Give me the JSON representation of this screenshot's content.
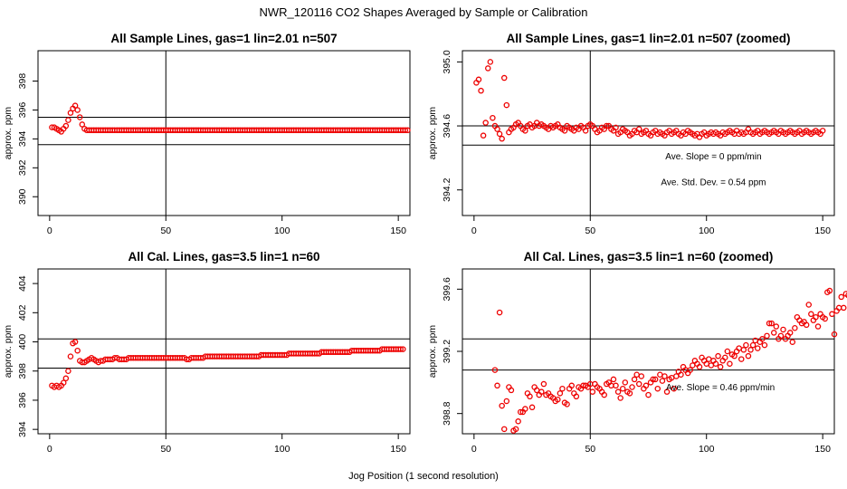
{
  "figure": {
    "title": "NWR_120116  CO2 Shapes Averaged by Sample or Calibration",
    "xlabel": "Jog Position (1 second resolution)",
    "marker_color": "#ee0000",
    "axis_color": "#000000"
  },
  "chart_data": [
    {
      "type": "scatter",
      "title": "All Sample Lines, gas=1 lin=2.01 n=507",
      "xlabel": "",
      "ylabel": "approx. ppm",
      "xlim": [
        -5,
        155
      ],
      "ylim": [
        388.7,
        400.1
      ],
      "xticks": [
        0,
        50,
        100,
        150
      ],
      "yticks": [
        390,
        392,
        394,
        396,
        398
      ],
      "xtick_labels": [
        "0",
        "50",
        "100",
        "150"
      ],
      "ytick_labels": [
        "390",
        "392",
        "394",
        "396",
        "398"
      ],
      "vline": 50,
      "hlines": [
        395.5,
        393.6
      ],
      "annotations": [],
      "series": [
        {
          "name": "sample",
          "x_start": 1,
          "x_step": 1,
          "values": [
            394.8,
            394.8,
            394.7,
            394.6,
            394.5,
            394.7,
            394.9,
            395.3,
            395.8,
            396.1,
            396.3,
            396.0,
            395.5,
            395.0,
            394.7,
            394.6,
            394.6,
            394.6,
            394.6,
            394.6,
            394.6,
            394.6,
            394.6,
            394.6,
            394.6,
            394.6,
            394.6,
            394.6,
            394.6,
            394.6,
            394.6,
            394.6,
            394.6,
            394.6,
            394.6,
            394.6,
            394.6,
            394.6,
            394.6,
            394.6,
            394.6,
            394.6,
            394.6,
            394.6,
            394.6,
            394.6,
            394.6,
            394.6,
            394.6,
            394.6,
            394.6,
            394.6,
            394.6,
            394.6,
            394.6,
            394.6,
            394.6,
            394.6,
            394.6,
            394.6,
            394.6,
            394.6,
            394.6,
            394.6,
            394.6,
            394.6,
            394.6,
            394.6,
            394.6,
            394.6,
            394.6,
            394.6,
            394.6,
            394.6,
            394.6,
            394.6,
            394.6,
            394.6,
            394.6,
            394.6,
            394.6,
            394.6,
            394.6,
            394.6,
            394.6,
            394.6,
            394.6,
            394.6,
            394.6,
            394.6,
            394.6,
            394.6,
            394.6,
            394.6,
            394.6,
            394.6,
            394.6,
            394.6,
            394.6,
            394.6,
            394.6,
            394.6,
            394.6,
            394.6,
            394.6,
            394.6,
            394.6,
            394.6,
            394.6,
            394.6,
            394.6,
            394.6,
            394.6,
            394.6,
            394.6,
            394.6,
            394.6,
            394.6,
            394.6,
            394.6,
            394.6,
            394.6,
            394.6,
            394.6,
            394.6,
            394.6,
            394.6,
            394.6,
            394.6,
            394.6,
            394.6,
            394.6,
            394.6,
            394.6,
            394.6,
            394.6,
            394.6,
            394.6,
            394.6,
            394.6,
            394.6,
            394.6,
            394.6,
            394.6,
            394.6,
            394.6,
            394.6,
            394.6,
            394.6,
            394.6,
            394.6,
            394.6,
            394.6,
            394.6
          ]
        }
      ]
    },
    {
      "type": "scatter",
      "title": "All Sample Lines, gas=1 lin=2.01 n=507 (zoomed)",
      "xlabel": "",
      "ylabel": "approx. ppm",
      "xlim": [
        -5,
        155
      ],
      "ylim": [
        394.04,
        395.07
      ],
      "xticks": [
        0,
        50,
        100,
        150
      ],
      "yticks": [
        394.2,
        394.6,
        395.0
      ],
      "xtick_labels": [
        "0",
        "50",
        "100",
        "150"
      ],
      "ytick_labels": [
        "394.2",
        "394.6",
        "395.0"
      ],
      "vline": 50,
      "hlines": [
        394.6,
        394.48
      ],
      "annotations": [
        {
          "text": "Ave. Slope =  0  ppm/min",
          "x": 103,
          "y": 394.39
        },
        {
          "text": "Ave. Std. Dev. =  0.54  ppm",
          "x": 103,
          "y": 394.23
        }
      ],
      "series": [
        {
          "name": "sample-zoomed",
          "x_start": 1,
          "x_step": 1,
          "values": [
            394.87,
            394.89,
            394.82,
            394.54,
            394.62,
            394.96,
            395.0,
            394.65,
            394.6,
            394.58,
            394.55,
            394.52,
            394.9,
            394.73,
            394.56,
            394.58,
            394.59,
            394.61,
            394.62,
            394.6,
            394.58,
            394.57,
            394.6,
            394.61,
            394.59,
            394.6,
            394.62,
            394.6,
            394.61,
            394.6,
            394.59,
            394.58,
            394.6,
            394.59,
            394.6,
            394.61,
            394.59,
            394.58,
            394.57,
            394.6,
            394.59,
            394.58,
            394.57,
            394.59,
            394.58,
            394.6,
            394.59,
            394.57,
            394.6,
            394.61,
            394.6,
            394.58,
            394.56,
            394.57,
            394.59,
            394.58,
            394.6,
            394.6,
            394.58,
            394.57,
            394.59,
            394.55,
            394.56,
            394.58,
            394.57,
            394.56,
            394.54,
            394.55,
            394.57,
            394.56,
            394.58,
            394.55,
            394.56,
            394.57,
            394.55,
            394.54,
            394.56,
            394.57,
            394.55,
            394.56,
            394.55,
            394.54,
            394.56,
            394.57,
            394.55,
            394.56,
            394.57,
            394.55,
            394.54,
            394.56,
            394.55,
            394.57,
            394.56,
            394.55,
            394.54,
            394.55,
            394.53,
            394.55,
            394.56,
            394.54,
            394.55,
            394.56,
            394.55,
            394.56,
            394.55,
            394.54,
            394.56,
            394.55,
            394.56,
            394.57,
            394.56,
            394.55,
            394.57,
            394.55,
            394.56,
            394.55,
            394.56,
            394.58,
            394.56,
            394.55,
            394.56,
            394.57,
            394.55,
            394.56,
            394.57,
            394.56,
            394.55,
            394.56,
            394.57,
            394.56,
            394.55,
            394.57,
            394.56,
            394.55,
            394.56,
            394.57,
            394.56,
            394.55,
            394.56,
            394.57,
            394.55,
            394.56,
            394.57,
            394.56,
            394.55,
            394.56,
            394.57,
            394.56,
            394.55,
            394.57
          ]
        }
      ]
    },
    {
      "type": "scatter",
      "title": "All Cal. Lines, gas=3.5 lin=1 n=60",
      "xlabel": "",
      "ylabel": "approx. ppm",
      "xlim": [
        -5,
        155
      ],
      "ylim": [
        393.7,
        405.0
      ],
      "xticks": [
        0,
        50,
        100,
        150
      ],
      "yticks": [
        394,
        396,
        398,
        400,
        402,
        404
      ],
      "xtick_labels": [
        "0",
        "50",
        "100",
        "150"
      ],
      "ytick_labels": [
        "394",
        "396",
        "398",
        "400",
        "402",
        "404"
      ],
      "vline": 50,
      "hlines": [
        400.2,
        398.2
      ],
      "annotations": [],
      "series": [
        {
          "name": "calibration",
          "x_start": 1,
          "x_step": 1,
          "values": [
            397.0,
            396.9,
            397.0,
            396.9,
            397.0,
            397.2,
            397.5,
            398.0,
            399.0,
            399.9,
            400.0,
            399.4,
            398.7,
            398.6,
            398.6,
            398.7,
            398.8,
            398.9,
            398.8,
            398.7,
            398.6,
            398.7,
            398.7,
            398.8,
            398.8,
            398.8,
            398.8,
            398.9,
            398.9,
            398.8,
            398.8,
            398.8,
            398.8,
            398.9,
            398.9,
            398.9,
            398.9,
            398.9,
            398.9,
            398.9,
            398.9,
            398.9,
            398.9,
            398.9,
            398.9,
            398.9,
            398.9,
            398.9,
            398.9,
            398.9,
            398.9,
            398.9,
            398.9,
            398.9,
            398.9,
            398.9,
            398.9,
            398.9,
            398.8,
            398.8,
            398.9,
            398.9,
            398.9,
            398.9,
            398.9,
            398.9,
            399.0,
            399.0,
            399.0,
            399.0,
            399.0,
            399.0,
            399.0,
            399.0,
            399.0,
            399.0,
            399.0,
            399.0,
            399.0,
            399.0,
            399.0,
            399.0,
            399.0,
            399.0,
            399.0,
            399.0,
            399.0,
            399.0,
            399.0,
            399.0,
            399.1,
            399.1,
            399.1,
            399.1,
            399.1,
            399.1,
            399.1,
            399.1,
            399.1,
            399.1,
            399.1,
            399.1,
            399.2,
            399.2,
            399.2,
            399.2,
            399.2,
            399.2,
            399.2,
            399.2,
            399.2,
            399.2,
            399.2,
            399.2,
            399.2,
            399.2,
            399.3,
            399.3,
            399.3,
            399.3,
            399.3,
            399.3,
            399.3,
            399.3,
            399.3,
            399.3,
            399.3,
            399.3,
            399.3,
            399.4,
            399.4,
            399.4,
            399.4,
            399.4,
            399.4,
            399.4,
            399.4,
            399.4,
            399.4,
            399.4,
            399.4,
            399.4,
            399.5,
            399.5,
            399.5,
            399.5,
            399.5,
            399.5,
            399.5,
            399.5,
            399.5,
            399.5
          ]
        }
      ]
    },
    {
      "type": "scatter",
      "title": "All Cal. Lines, gas=3.5 lin=1 n=60 (zoomed)",
      "xlabel": "",
      "ylabel": "approx. ppm",
      "xlim": [
        -5,
        155
      ],
      "ylim": [
        398.67,
        399.73
      ],
      "xticks": [
        0,
        50,
        100,
        150
      ],
      "yticks": [
        398.8,
        399.2,
        399.6
      ],
      "xtick_labels": [
        "0",
        "50",
        "100",
        "150"
      ],
      "ytick_labels": [
        "398.8",
        "399.2",
        "399.6"
      ],
      "vline": 50,
      "hlines": [
        399.28,
        399.08
      ],
      "annotations": [
        {
          "text": "Ave. Slope =  0.46  ppm/min",
          "x": 106,
          "y": 398.95
        }
      ],
      "series": [
        {
          "name": "calibration-zoomed",
          "x_start": 9,
          "x_step": 1,
          "values": [
            399.08,
            398.98,
            399.45,
            398.85,
            398.7,
            398.88,
            398.97,
            398.95,
            398.69,
            398.7,
            398.75,
            398.81,
            398.81,
            398.83,
            398.93,
            398.91,
            398.84,
            398.97,
            398.95,
            398.92,
            398.94,
            398.99,
            398.92,
            398.93,
            398.91,
            398.9,
            398.88,
            398.89,
            398.93,
            398.96,
            398.87,
            398.86,
            398.96,
            398.98,
            398.93,
            398.91,
            398.97,
            398.96,
            398.98,
            398.98,
            398.97,
            398.99,
            398.94,
            398.99,
            398.97,
            398.96,
            398.94,
            398.92,
            398.99,
            399.0,
            398.98,
            399.02,
            398.98,
            398.94,
            398.9,
            398.96,
            399.0,
            398.94,
            398.93,
            398.97,
            399.02,
            399.05,
            398.99,
            399.04,
            398.96,
            398.98,
            398.92,
            399.0,
            399.02,
            399.02,
            398.96,
            399.05,
            399.01,
            399.04,
            398.94,
            399.02,
            399.03,
            398.96,
            399.04,
            399.07,
            399.05,
            399.1,
            399.08,
            399.06,
            399.08,
            399.11,
            399.14,
            399.12,
            399.1,
            399.16,
            399.14,
            399.12,
            399.15,
            399.11,
            399.14,
            399.12,
            399.17,
            399.1,
            399.14,
            399.16,
            399.2,
            399.12,
            399.18,
            399.17,
            399.2,
            399.22,
            399.15,
            399.21,
            399.24,
            399.17,
            399.21,
            399.24,
            399.27,
            399.22,
            399.26,
            399.28,
            399.24,
            399.3,
            399.38,
            399.38,
            399.32,
            399.36,
            399.28,
            399.3,
            399.34,
            399.28,
            399.3,
            399.32,
            399.26,
            399.35,
            399.42,
            399.4,
            399.38,
            399.39,
            399.37,
            399.5,
            399.44,
            399.4,
            399.42,
            399.36,
            399.44,
            399.42,
            399.41,
            399.58,
            399.59,
            399.44,
            399.31,
            399.46,
            399.48,
            399.55,
            399.48,
            399.57,
            399.56
          ]
        }
      ]
    }
  ]
}
